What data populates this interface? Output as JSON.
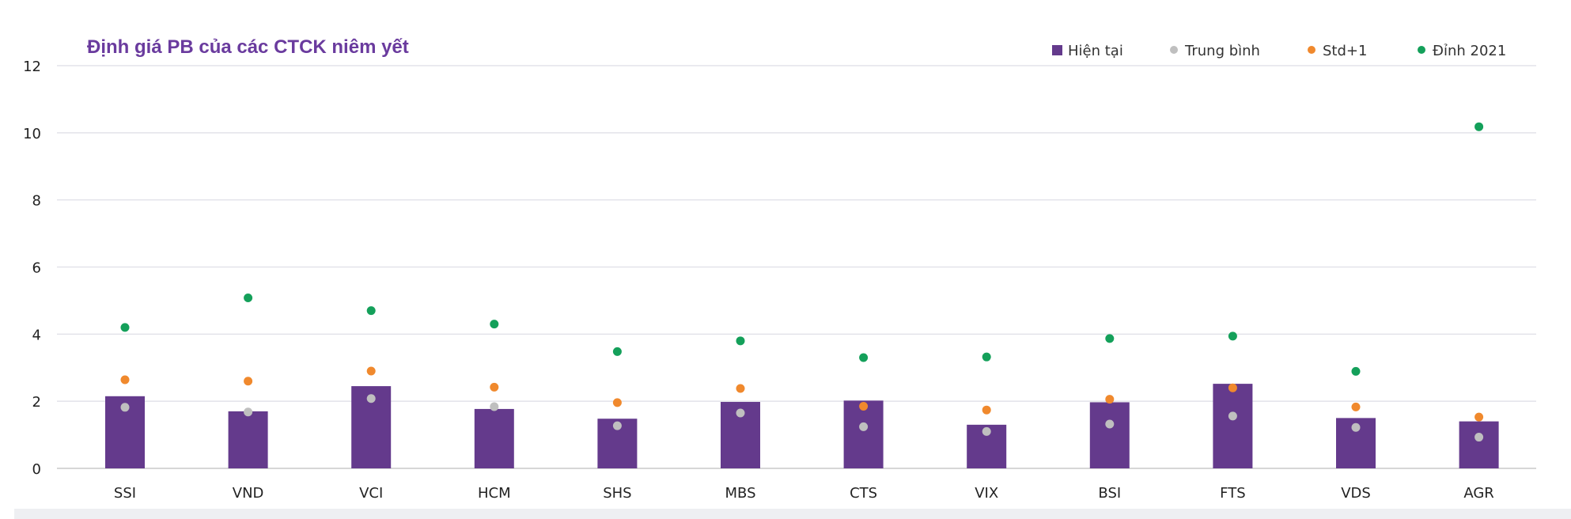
{
  "chart_data": {
    "type": "bar",
    "title": "Định giá PB của các CTCK niêm yết",
    "categories": [
      "SSI",
      "VND",
      "VCI",
      "HCM",
      "SHS",
      "MBS",
      "CTS",
      "VIX",
      "BSI",
      "FTS",
      "VDS",
      "AGR"
    ],
    "series": [
      {
        "name": "Hiện tại",
        "kind": "bar",
        "color": "#643a8c",
        "values": [
          2.15,
          1.7,
          2.45,
          1.77,
          1.48,
          1.98,
          2.02,
          1.3,
          1.97,
          2.52,
          1.5,
          1.4
        ]
      },
      {
        "name": "Trung bình",
        "kind": "dot",
        "color": "#bfbfbf",
        "values": [
          1.82,
          1.68,
          2.08,
          1.84,
          1.27,
          1.65,
          1.24,
          1.1,
          1.32,
          1.56,
          1.22,
          0.93
        ]
      },
      {
        "name": "Std+1",
        "kind": "dot",
        "color": "#f0892d",
        "values": [
          2.64,
          2.6,
          2.9,
          2.42,
          1.96,
          2.38,
          1.85,
          1.74,
          2.06,
          2.4,
          1.83,
          1.53
        ]
      },
      {
        "name": "Đỉnh 2021",
        "kind": "dot",
        "color": "#14a05a",
        "values": [
          4.2,
          5.08,
          4.7,
          4.3,
          3.48,
          3.8,
          3.3,
          3.32,
          3.87,
          3.94,
          2.89,
          10.18
        ]
      }
    ],
    "ylim": [
      0,
      12
    ],
    "yticks": [
      "0",
      "2",
      "4",
      "6",
      "8",
      "10",
      "12"
    ],
    "grid": true,
    "legend_position": "top-right",
    "title_color": "#6a3b9e"
  }
}
